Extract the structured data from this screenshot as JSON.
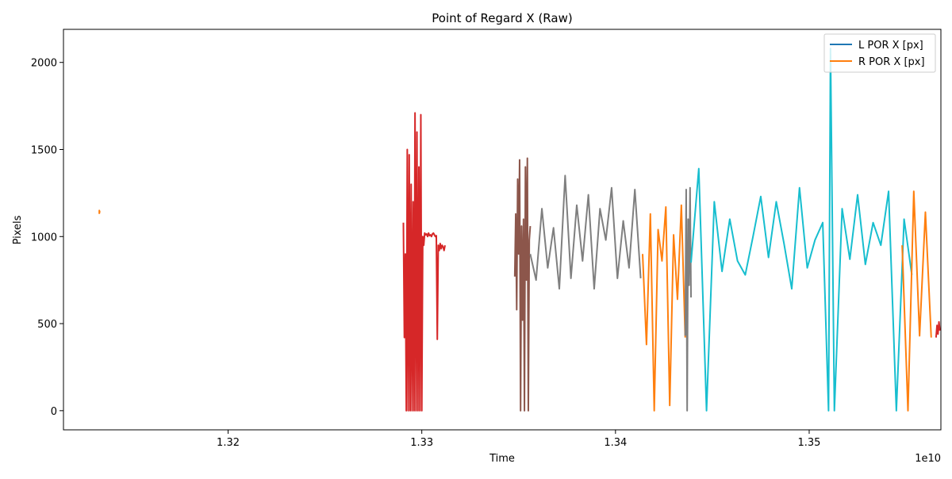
{
  "chart_data": {
    "type": "line",
    "title": "Point of Regard X (Raw)",
    "xlabel": "Time",
    "ylabel": "Pixels",
    "x_offset_label": "1e10",
    "x_scale": 10000000000,
    "xlim": [
      1.3115,
      1.3568
    ],
    "ylim": [
      -110,
      2190
    ],
    "x_ticks": [
      1.32,
      1.33,
      1.34,
      1.35
    ],
    "x_tick_labels": [
      "1.32",
      "1.33",
      "1.34",
      "1.35"
    ],
    "y_ticks": [
      0,
      500,
      1000,
      1500,
      2000
    ],
    "y_tick_labels": [
      "0",
      "500",
      "1000",
      "1500",
      "2000"
    ],
    "grid": false,
    "legend": {
      "placement": "top-right",
      "entries": [
        {
          "label": "L POR X [px]",
          "color": "#1f77b4"
        },
        {
          "label": "R POR X [px]",
          "color": "#ff7f0e"
        }
      ]
    },
    "segments": [
      {
        "color": "#ff7f0e",
        "x": [
          1.31335,
          1.31335,
          1.31337,
          1.31337
        ],
        "y": [
          1130,
          1150,
          1140,
          1145
        ]
      },
      {
        "color": "#d62728",
        "x": [
          1.32905,
          1.3291,
          1.32915,
          1.3292,
          1.32925,
          1.3293,
          1.32935,
          1.3294,
          1.32945,
          1.3295,
          1.32955,
          1.3296,
          1.32965,
          1.3297,
          1.32975,
          1.3298,
          1.32985,
          1.3299,
          1.32995,
          1.33,
          1.33005,
          1.3301,
          1.33015,
          1.3302,
          1.33025,
          1.3303,
          1.33035,
          1.3304,
          1.33045,
          1.3305,
          1.33055,
          1.3306,
          1.33065,
          1.3307,
          1.33075,
          1.3308,
          1.33085,
          1.3309,
          1.33095,
          1.331,
          1.33105,
          1.3311,
          1.33115,
          1.3312
        ],
        "y": [
          1080,
          420,
          900,
          0,
          1500,
          0,
          1470,
          0,
          1300,
          0,
          1200,
          0,
          1710,
          0,
          1600,
          0,
          1400,
          0,
          1700,
          0,
          1000,
          950,
          1020,
          1010,
          1015,
          1000,
          1020,
          1005,
          1010,
          1000,
          1015,
          1020,
          1010,
          1000,
          1005,
          410,
          950,
          920,
          960,
          930,
          950,
          940,
          920,
          950
        ]
      },
      {
        "color": "#8c564b",
        "x": [
          1.3348,
          1.33485,
          1.3349,
          1.33495,
          1.335,
          1.33505,
          1.3351,
          1.33515,
          1.3352,
          1.33525,
          1.3353,
          1.33535,
          1.3354,
          1.33545,
          1.3355,
          1.33555,
          1.3356
        ],
        "y": [
          770,
          1130,
          580,
          1330,
          900,
          1440,
          0,
          1060,
          520,
          1100,
          0,
          1400,
          750,
          1450,
          0,
          980,
          1060
        ]
      },
      {
        "color": "#7f7f7f",
        "x": [
          1.3356,
          1.3359,
          1.3362,
          1.3365,
          1.3368,
          1.3371,
          1.3374,
          1.3377,
          1.338,
          1.3383,
          1.3386,
          1.3389,
          1.3392,
          1.3395,
          1.3398,
          1.3401,
          1.3404,
          1.3407,
          1.341,
          1.3413
        ],
        "y": [
          900,
          750,
          1160,
          820,
          1050,
          700,
          1350,
          760,
          1180,
          860,
          1240,
          700,
          1160,
          980,
          1280,
          760,
          1090,
          820,
          1270,
          760
        ]
      },
      {
        "color": "#ff7f0e",
        "x": [
          1.3414,
          1.3416,
          1.3418,
          1.342,
          1.3422,
          1.3424,
          1.3426,
          1.3428,
          1.343,
          1.3432,
          1.3434,
          1.3436
        ],
        "y": [
          900,
          380,
          1130,
          0,
          1040,
          860,
          1170,
          30,
          1010,
          640,
          1180,
          420
        ]
      },
      {
        "color": "#7f7f7f",
        "x": [
          1.3436,
          1.34365,
          1.3437,
          1.34375,
          1.3438,
          1.34385,
          1.3439
        ],
        "y": [
          430,
          1270,
          0,
          1100,
          720,
          1280,
          650
        ]
      },
      {
        "color": "#17becf",
        "x": [
          1.3439,
          1.3443,
          1.3447,
          1.3451,
          1.3455,
          1.3459,
          1.3463,
          1.3467,
          1.3471,
          1.3475,
          1.3479,
          1.3483,
          1.3487,
          1.3491,
          1.3495,
          1.3499,
          1.3503,
          1.3507,
          1.351,
          1.3511,
          1.3513,
          1.3517,
          1.3521,
          1.3525,
          1.3529,
          1.3533,
          1.3537,
          1.3541,
          1.3545,
          1.3549,
          1.3553
        ],
        "y": [
          850,
          1390,
          0,
          1200,
          800,
          1100,
          860,
          780,
          1000,
          1230,
          880,
          1200,
          960,
          700,
          1280,
          820,
          980,
          1080,
          0,
          2080,
          0,
          1160,
          870,
          1240,
          840,
          1080,
          950,
          1260,
          0,
          1100,
          780
        ]
      },
      {
        "color": "#ff7f0e",
        "x": [
          1.3548,
          1.3551,
          1.3554,
          1.3557,
          1.356,
          1.3563
        ],
        "y": [
          950,
          0,
          1260,
          430,
          1140,
          420
        ]
      },
      {
        "color": "#d62728",
        "x": [
          1.35655,
          1.3566,
          1.35665,
          1.3567,
          1.35675
        ],
        "y": [
          420,
          490,
          440,
          510,
          460
        ]
      }
    ]
  }
}
